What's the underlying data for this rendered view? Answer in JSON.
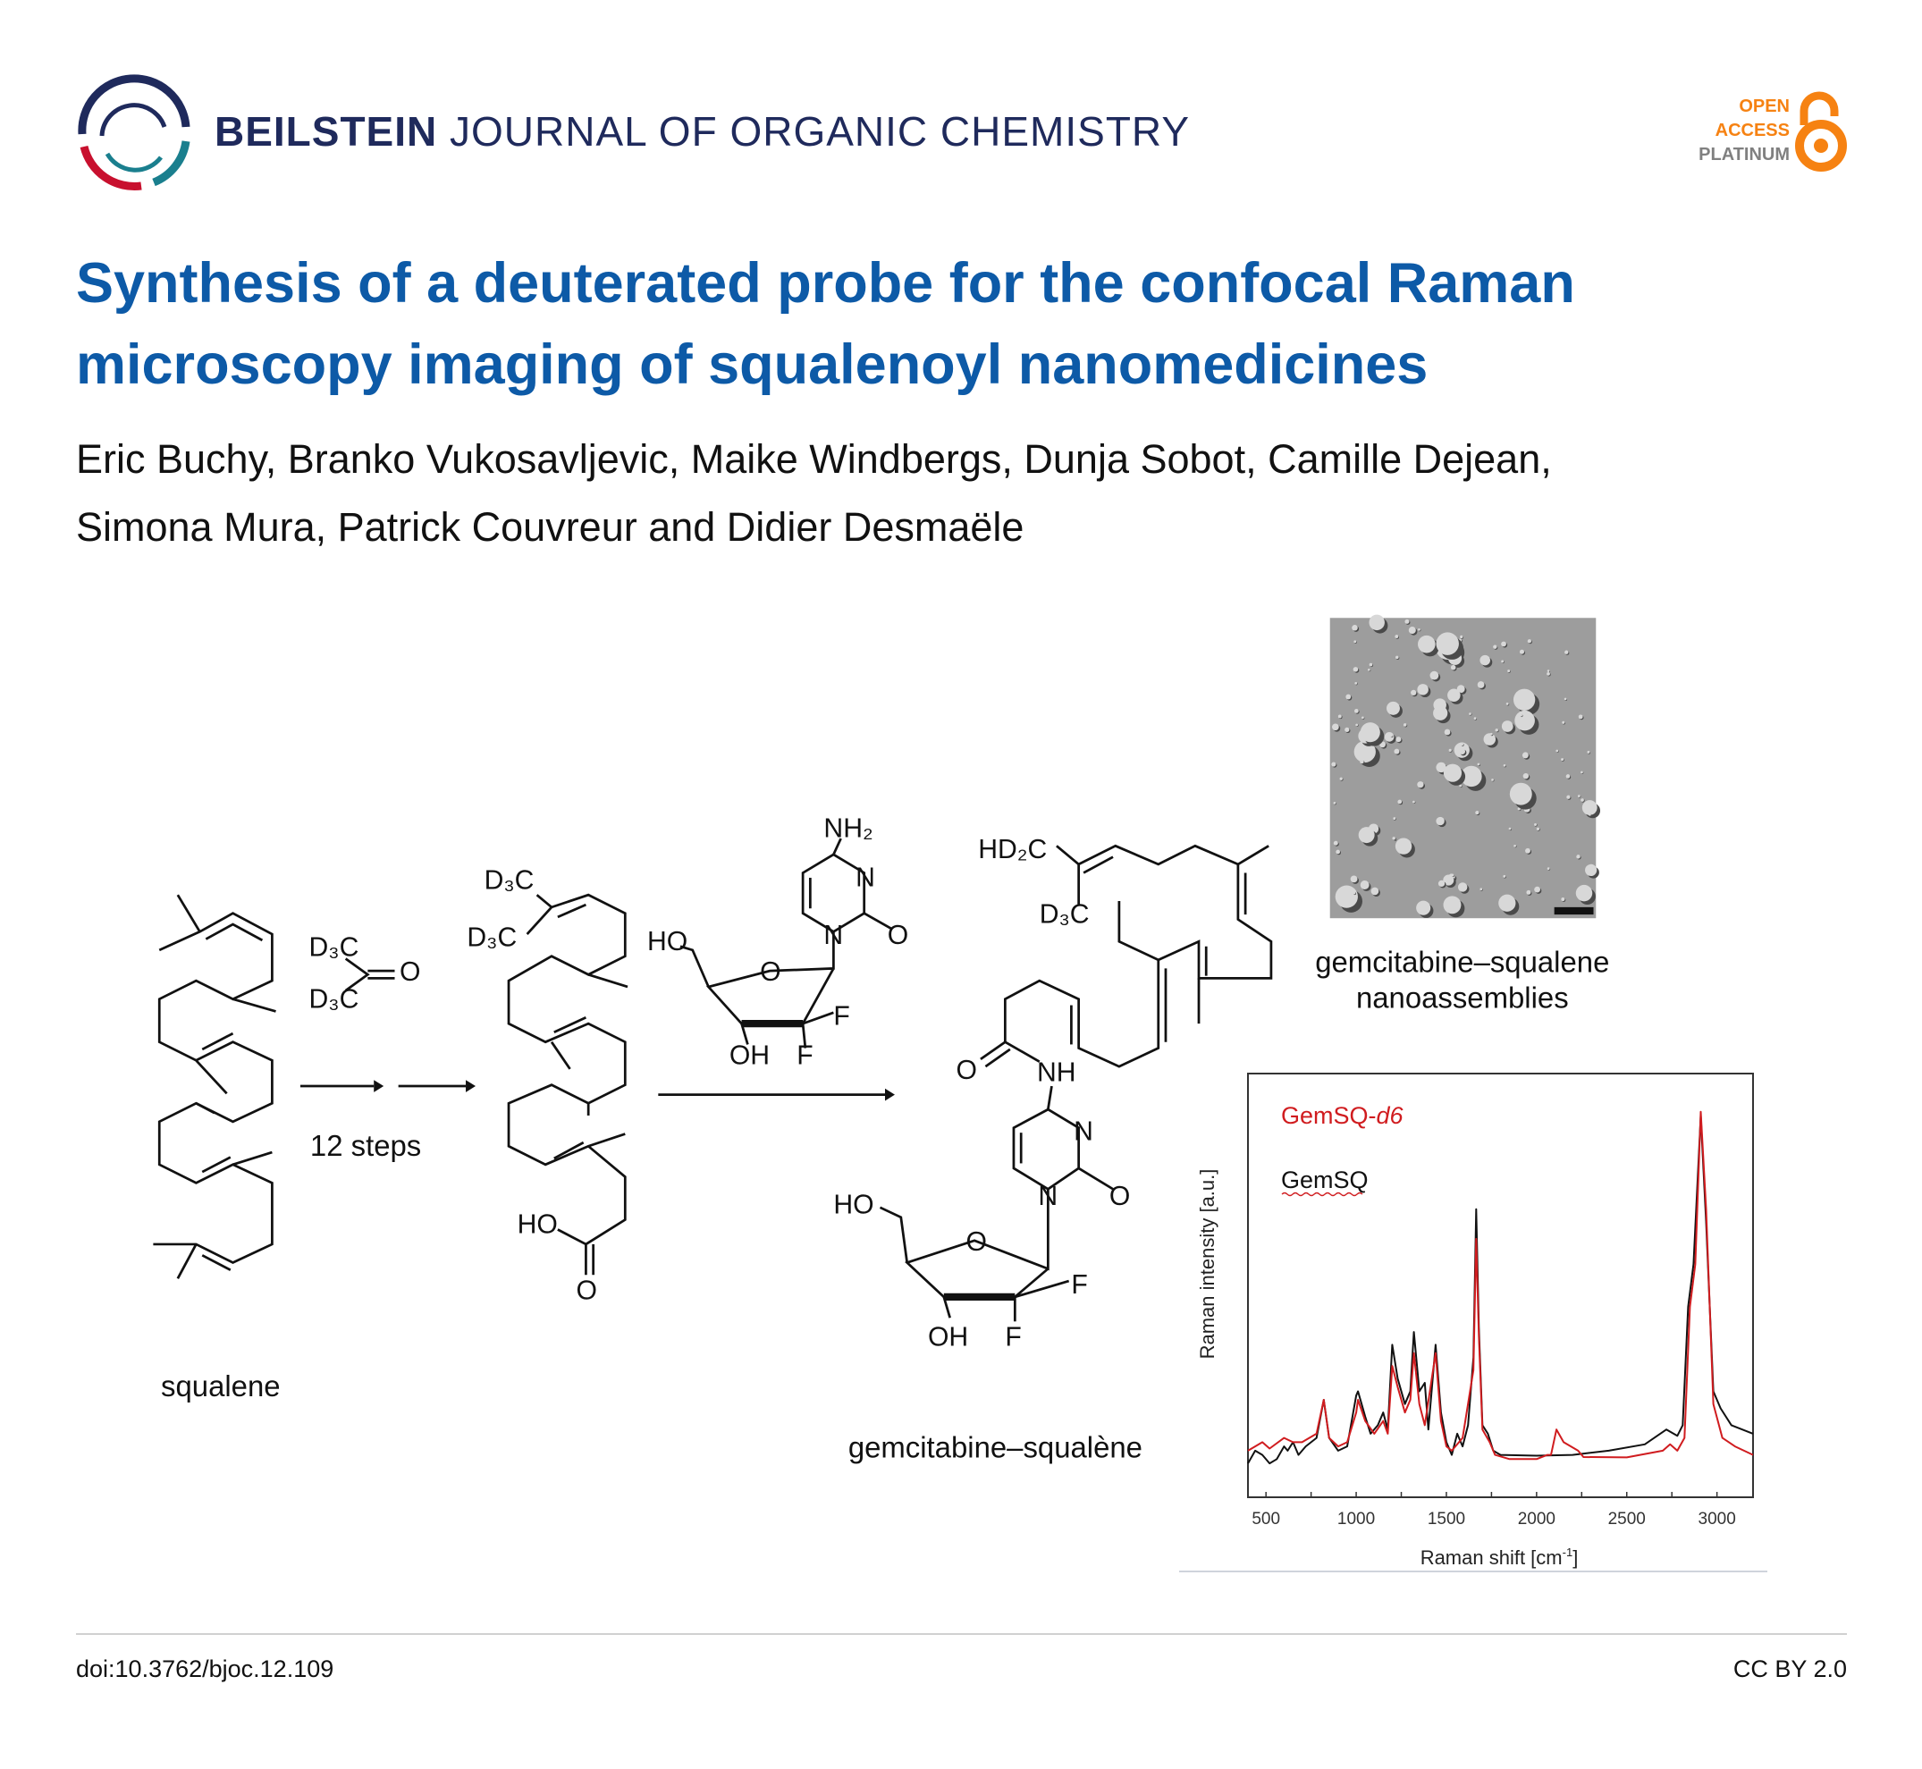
{
  "header": {
    "journal_bold": "BEILSTEIN",
    "journal_light": " JOURNAL OF ORGANIC CHEMISTRY",
    "badge": {
      "line1": "OPEN",
      "line2": "ACCESS",
      "line3": "PLATINUM",
      "icon": "open-lock-icon"
    },
    "colors": {
      "navy": "#1f2a5c",
      "red": "#c8102e",
      "teal": "#1a7f8e",
      "orange": "#f68212"
    }
  },
  "article": {
    "title_line1": "Synthesis of a deuterated probe for the confocal Raman",
    "title_line2": "microscopy imaging of squalenoyl nanomedicines",
    "authors_line1": "Eric Buchy, Branko Vukosavljevic, Maike Windbergs, Dunja Sobot, Camille Dejean,",
    "authors_line2": "Simona Mura, Patrick Couvreur and Didier Desmaële",
    "title_color": "#0d5aa7"
  },
  "scheme": {
    "labels": [
      "D₃C",
      "O",
      "D₃C",
      "12 steps",
      "D₃C",
      "D₃C",
      "HO",
      "O",
      "NH₂",
      "N",
      "O",
      "N",
      "HO",
      "O",
      "F",
      "OH",
      "F",
      "HD₂C",
      "D₃C",
      "O",
      "NH",
      "N",
      "O",
      "N",
      "HO",
      "O",
      "F",
      "OH",
      "F"
    ],
    "caption_squalene": "squalene",
    "caption_product": "gemcitabine–squalène",
    "caption_nano_line1": "gemcitabine–squalene",
    "caption_nano_line2": "nanoassemblies"
  },
  "chart_data": {
    "type": "line",
    "xlabel": "Raman shift [cm-1]",
    "xlabel_main": "Raman shift [cm",
    "xlabel_sup": "-1",
    "xlabel_end": "]",
    "ylabel": "Raman intensity [a.u.]",
    "xlim": [
      400,
      3200
    ],
    "ylim": [
      0,
      1
    ],
    "xticks": [
      500,
      1000,
      1500,
      2000,
      2500,
      3000
    ],
    "xtick_labels": [
      "500",
      "1000",
      "1500",
      "2000",
      "2500",
      "3000"
    ],
    "legend_placement": "top-left",
    "series": [
      {
        "name": "GemSQ-d6",
        "color": "#d01c1f",
        "x": [
          400,
          480,
          520,
          600,
          650,
          700,
          780,
          820,
          850,
          900,
          950,
          1000,
          1010,
          1050,
          1100,
          1150,
          1175,
          1200,
          1230,
          1270,
          1300,
          1320,
          1350,
          1380,
          1440,
          1470,
          1500,
          1530,
          1590,
          1650,
          1665,
          1680,
          1700,
          1740,
          1770,
          1850,
          2000,
          2060,
          2080,
          2110,
          2150,
          2230,
          2260,
          2500,
          2700,
          2740,
          2780,
          2820,
          2850,
          2880,
          2910,
          2940,
          2980,
          3030,
          3100,
          3200
        ],
        "y": [
          0.11,
          0.13,
          0.115,
          0.14,
          0.13,
          0.13,
          0.15,
          0.23,
          0.14,
          0.12,
          0.13,
          0.2,
          0.23,
          0.18,
          0.15,
          0.18,
          0.15,
          0.31,
          0.26,
          0.2,
          0.23,
          0.34,
          0.22,
          0.17,
          0.34,
          0.18,
          0.12,
          0.11,
          0.14,
          0.3,
          0.61,
          0.38,
          0.16,
          0.13,
          0.1,
          0.09,
          0.09,
          0.1,
          0.1,
          0.16,
          0.13,
          0.11,
          0.095,
          0.094,
          0.11,
          0.125,
          0.11,
          0.14,
          0.45,
          0.55,
          0.91,
          0.68,
          0.22,
          0.14,
          0.12,
          0.1
        ]
      },
      {
        "name": "GemSQ",
        "color": "#111111",
        "x": [
          400,
          440,
          480,
          520,
          560,
          600,
          620,
          650,
          680,
          720,
          780,
          820,
          850,
          900,
          950,
          1000,
          1010,
          1050,
          1080,
          1120,
          1150,
          1175,
          1200,
          1230,
          1270,
          1300,
          1320,
          1350,
          1380,
          1400,
          1440,
          1470,
          1500,
          1530,
          1560,
          1590,
          1620,
          1650,
          1665,
          1680,
          1700,
          1730,
          1760,
          1800,
          2000,
          2200,
          2400,
          2600,
          2720,
          2780,
          2810,
          2840,
          2870,
          2910,
          2940,
          2980,
          3020,
          3080,
          3200
        ],
        "y": [
          0.08,
          0.11,
          0.1,
          0.08,
          0.09,
          0.12,
          0.11,
          0.13,
          0.1,
          0.12,
          0.14,
          0.23,
          0.14,
          0.11,
          0.12,
          0.24,
          0.25,
          0.19,
          0.15,
          0.17,
          0.2,
          0.16,
          0.36,
          0.28,
          0.22,
          0.25,
          0.39,
          0.25,
          0.27,
          0.16,
          0.36,
          0.2,
          0.13,
          0.1,
          0.15,
          0.12,
          0.17,
          0.33,
          0.68,
          0.4,
          0.17,
          0.15,
          0.11,
          0.1,
          0.098,
          0.1,
          0.11,
          0.125,
          0.16,
          0.145,
          0.17,
          0.45,
          0.55,
          0.9,
          0.65,
          0.25,
          0.21,
          0.17,
          0.15
        ]
      }
    ],
    "legend": [
      {
        "text_main": "GemSQ-",
        "text_italic": "d6",
        "color": "#d01c1f"
      },
      {
        "text_main": "GemSQ",
        "color": "#111111"
      }
    ],
    "grid": false
  },
  "footer": {
    "doi": "doi:10.3762/bjoc.12.109",
    "license": "CC BY 2.0"
  }
}
